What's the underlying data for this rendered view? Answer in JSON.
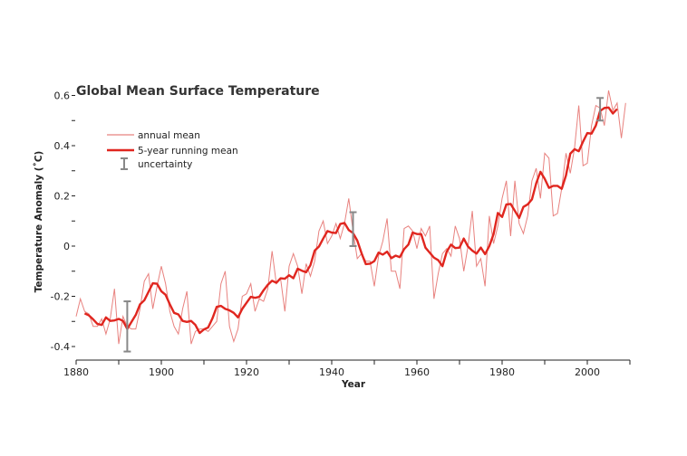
{
  "chart_data": {
    "type": "line",
    "title": "Global Mean Surface Temperature",
    "xlabel": "Year",
    "ylabel": "Temperature Anomaly (˚C)",
    "xlim": [
      1880,
      2010
    ],
    "ylim": [
      -0.45,
      0.65
    ],
    "x_ticks": [
      1880,
      1890,
      1900,
      1910,
      1920,
      1930,
      1940,
      1950,
      1960,
      1970,
      1980,
      1990,
      2000,
      2010
    ],
    "x_tick_labels": [
      "1880",
      "1900",
      "1920",
      "1940",
      "1960",
      "1980",
      "2000"
    ],
    "x_tick_label_values": [
      1880,
      1900,
      1920,
      1940,
      1960,
      1980,
      2000
    ],
    "y_ticks": [
      -0.4,
      -0.3,
      -0.2,
      -0.1,
      0,
      0.1,
      0.2,
      0.3,
      0.4,
      0.5,
      0.6
    ],
    "y_tick_labels": [
      "-0.4",
      "-0.2",
      "0",
      "0.2",
      "0.4",
      "0.6"
    ],
    "y_tick_label_values": [
      -0.4,
      -0.2,
      0,
      0.2,
      0.4,
      0.6
    ],
    "grid": false,
    "legend_position": "top-left",
    "legend": [
      "annual mean",
      "5-year running mean",
      "uncertainty"
    ],
    "colors": {
      "annual": "#e8827f",
      "running": "#e0261f",
      "uncertainty": "#888888",
      "text": "#333333"
    },
    "series": [
      {
        "name": "annual mean",
        "x_start": 1880,
        "values": [
          -0.28,
          -0.21,
          -0.26,
          -0.27,
          -0.32,
          -0.32,
          -0.29,
          -0.35,
          -0.29,
          -0.17,
          -0.39,
          -0.28,
          -0.32,
          -0.33,
          -0.33,
          -0.25,
          -0.14,
          -0.11,
          -0.25,
          -0.16,
          -0.08,
          -0.15,
          -0.26,
          -0.32,
          -0.35,
          -0.25,
          -0.18,
          -0.39,
          -0.34,
          -0.33,
          -0.33,
          -0.34,
          -0.32,
          -0.3,
          -0.15,
          -0.1,
          -0.32,
          -0.38,
          -0.33,
          -0.2,
          -0.19,
          -0.15,
          -0.26,
          -0.21,
          -0.22,
          -0.17,
          -0.02,
          -0.15,
          -0.13,
          -0.26,
          -0.08,
          -0.03,
          -0.08,
          -0.19,
          -0.07,
          -0.12,
          -0.06,
          0.06,
          0.1,
          0.01,
          0.04,
          0.09,
          0.03,
          0.09,
          0.19,
          0.06,
          -0.05,
          -0.03,
          -0.06,
          -0.06,
          -0.16,
          -0.04,
          0.02,
          0.11,
          -0.1,
          -0.1,
          -0.17,
          0.07,
          0.08,
          0.06,
          -0.01,
          0.07,
          0.04,
          0.08,
          -0.21,
          -0.11,
          -0.03,
          -0.01,
          -0.04,
          0.08,
          0.03,
          -0.1,
          0.0,
          0.14,
          -0.08,
          -0.05,
          -0.16,
          0.12,
          0.01,
          0.08,
          0.19,
          0.26,
          0.04,
          0.26,
          0.09,
          0.05,
          0.12,
          0.26,
          0.31,
          0.19,
          0.37,
          0.35,
          0.12,
          0.13,
          0.23,
          0.37,
          0.29,
          0.39,
          0.56,
          0.32,
          0.33,
          0.48,
          0.56,
          0.55,
          0.48,
          0.62,
          0.54,
          0.57,
          0.43,
          0.57
        ]
      },
      {
        "name": "5-year running mean",
        "x_start": 1882,
        "values": [
          -0.268,
          -0.276,
          -0.292,
          -0.31,
          -0.314,
          -0.284,
          -0.298,
          -0.296,
          -0.29,
          -0.298,
          -0.33,
          -0.302,
          -0.274,
          -0.232,
          -0.216,
          -0.182,
          -0.148,
          -0.15,
          -0.18,
          -0.194,
          -0.232,
          -0.266,
          -0.272,
          -0.298,
          -0.302,
          -0.298,
          -0.314,
          -0.346,
          -0.332,
          -0.324,
          -0.288,
          -0.242,
          -0.238,
          -0.25,
          -0.256,
          -0.266,
          -0.284,
          -0.25,
          -0.226,
          -0.202,
          -0.206,
          -0.202,
          -0.176,
          -0.154,
          -0.138,
          -0.146,
          -0.128,
          -0.13,
          -0.116,
          -0.128,
          -0.09,
          -0.098,
          -0.104,
          -0.076,
          -0.018,
          -0.002,
          0.03,
          0.06,
          0.054,
          0.052,
          0.088,
          0.092,
          0.064,
          0.052,
          0.022,
          -0.028,
          -0.072,
          -0.07,
          -0.06,
          -0.026,
          -0.034,
          -0.022,
          -0.048,
          -0.038,
          -0.044,
          -0.012,
          0.006,
          0.054,
          0.048,
          0.048,
          -0.006,
          -0.026,
          -0.046,
          -0.056,
          -0.08,
          -0.022,
          0.006,
          -0.008,
          -0.006,
          0.03,
          -0.002,
          -0.018,
          -0.03,
          -0.006,
          -0.032,
          0.0,
          0.048,
          0.132,
          0.116,
          0.166,
          0.168,
          0.14,
          0.112,
          0.156,
          0.166,
          0.186,
          0.25,
          0.296,
          0.268,
          0.232,
          0.24,
          0.24,
          0.228,
          0.282,
          0.368,
          0.386,
          0.378,
          0.416,
          0.45,
          0.448,
          0.48,
          0.538,
          0.55,
          0.552,
          0.528,
          0.546
        ]
      }
    ],
    "uncertainty": [
      {
        "year": 1892,
        "low": -0.42,
        "high": -0.22
      },
      {
        "year": 1945,
        "low": 0.0,
        "high": 0.135
      },
      {
        "year": 2003,
        "low": 0.5,
        "high": 0.59
      }
    ]
  }
}
